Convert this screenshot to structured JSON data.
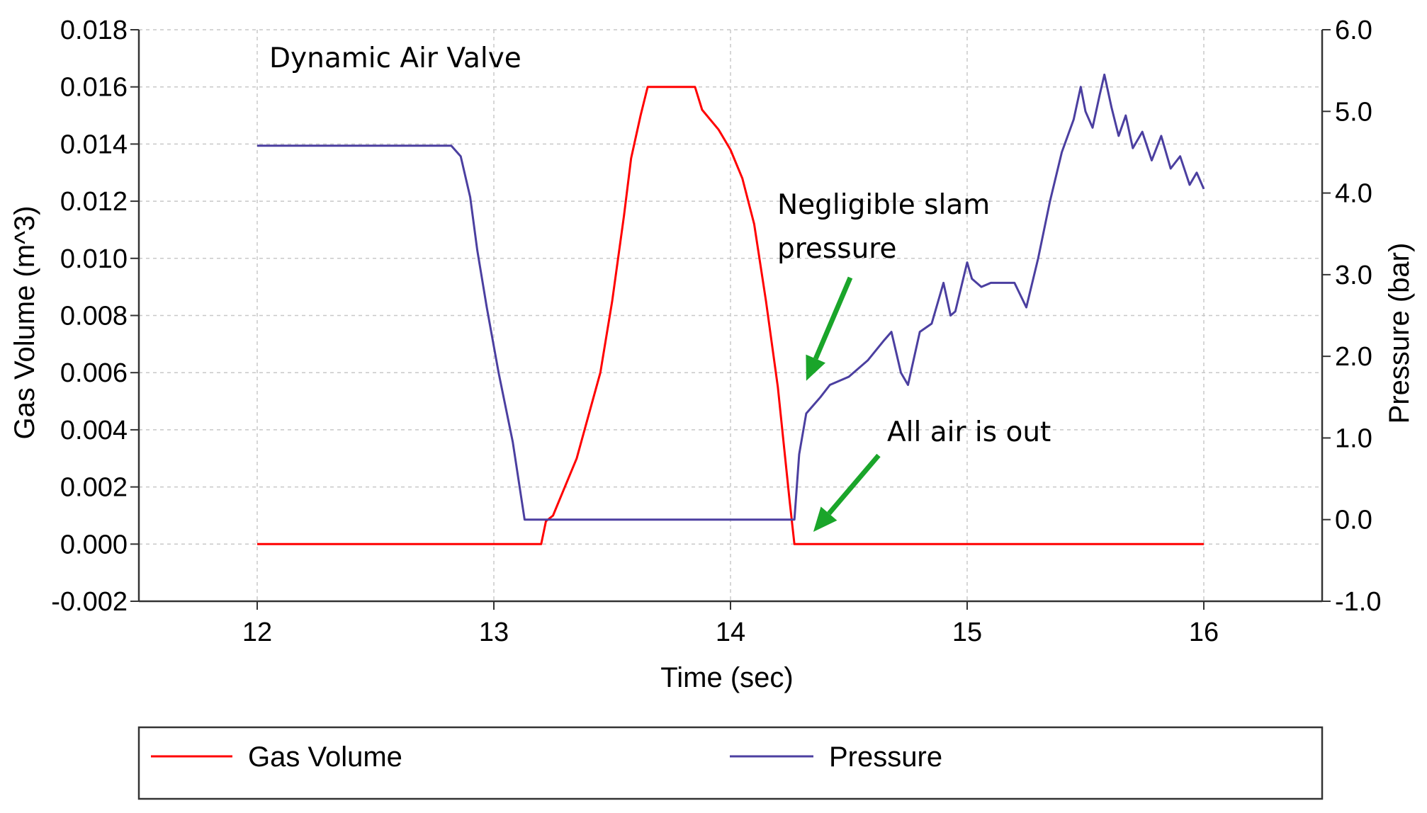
{
  "chart_data": {
    "type": "line",
    "title": "",
    "xlabel": "Time (sec)",
    "ylabel_left": "Gas Volume (m^3)",
    "ylabel_right": "Pressure (bar)",
    "xlim": [
      11.5,
      16.5
    ],
    "ylim_left": [
      -0.002,
      0.018
    ],
    "ylim_right": [
      -1.0,
      6.0
    ],
    "x_ticks": [
      "12",
      "13",
      "14",
      "15",
      "16"
    ],
    "y_ticks_left": [
      "0.018",
      "0.016",
      "0.014",
      "0.012",
      "0.010",
      "0.008",
      "0.006",
      "0.004",
      "0.002",
      "0.000",
      "-0.002"
    ],
    "y_ticks_right": [
      "6.0",
      "5.0",
      "4.0",
      "3.0",
      "2.0",
      "1.0",
      "0.0",
      "-1.0"
    ],
    "grid": true,
    "legend_placement": "bottom",
    "annotations": [
      {
        "lines": [
          "Dynamic Air Valve"
        ],
        "arrow": false
      },
      {
        "lines": [
          "Negligible slam",
          "pressure"
        ],
        "arrow": true,
        "target": [
          14.32,
          1.7
        ]
      },
      {
        "lines": [
          "All air is out"
        ],
        "arrow": true,
        "target": [
          14.35,
          -0.15
        ]
      }
    ],
    "series": [
      {
        "name": "Gas Volume",
        "axis": "left",
        "color": "#ff0000",
        "points": [
          [
            12.0,
            0.0
          ],
          [
            13.2,
            0.0
          ],
          [
            13.22,
            0.0008
          ],
          [
            13.25,
            0.001
          ],
          [
            13.3,
            0.002
          ],
          [
            13.35,
            0.003
          ],
          [
            13.4,
            0.0045
          ],
          [
            13.45,
            0.006
          ],
          [
            13.5,
            0.0085
          ],
          [
            13.55,
            0.0115
          ],
          [
            13.58,
            0.0135
          ],
          [
            13.62,
            0.015
          ],
          [
            13.65,
            0.016
          ],
          [
            13.85,
            0.016
          ],
          [
            13.88,
            0.0152
          ],
          [
            13.95,
            0.0145
          ],
          [
            14.0,
            0.0138
          ],
          [
            14.05,
            0.0128
          ],
          [
            14.1,
            0.0112
          ],
          [
            14.15,
            0.0085
          ],
          [
            14.2,
            0.0055
          ],
          [
            14.25,
            0.0015
          ],
          [
            14.27,
            0.0
          ],
          [
            16.0,
            0.0
          ]
        ]
      },
      {
        "name": "Pressure",
        "axis": "right",
        "color": "#4b3fa0",
        "points": [
          [
            12.0,
            4.58
          ],
          [
            12.82,
            4.58
          ],
          [
            12.86,
            4.45
          ],
          [
            12.9,
            3.95
          ],
          [
            12.93,
            3.3
          ],
          [
            12.97,
            2.6
          ],
          [
            13.02,
            1.8
          ],
          [
            13.08,
            0.95
          ],
          [
            13.13,
            0.0
          ],
          [
            14.27,
            0.0
          ],
          [
            14.29,
            0.8
          ],
          [
            14.32,
            1.3
          ],
          [
            14.38,
            1.5
          ],
          [
            14.42,
            1.65
          ],
          [
            14.5,
            1.75
          ],
          [
            14.58,
            1.95
          ],
          [
            14.65,
            2.2
          ],
          [
            14.68,
            2.3
          ],
          [
            14.72,
            1.8
          ],
          [
            14.75,
            1.65
          ],
          [
            14.8,
            2.3
          ],
          [
            14.85,
            2.4
          ],
          [
            14.9,
            2.9
          ],
          [
            14.93,
            2.5
          ],
          [
            14.95,
            2.55
          ],
          [
            15.0,
            3.15
          ],
          [
            15.02,
            2.95
          ],
          [
            15.06,
            2.85
          ],
          [
            15.1,
            2.9
          ],
          [
            15.15,
            2.9
          ],
          [
            15.2,
            2.9
          ],
          [
            15.25,
            2.6
          ],
          [
            15.3,
            3.2
          ],
          [
            15.35,
            3.9
          ],
          [
            15.4,
            4.5
          ],
          [
            15.45,
            4.9
          ],
          [
            15.48,
            5.3
          ],
          [
            15.5,
            5.0
          ],
          [
            15.53,
            4.8
          ],
          [
            15.56,
            5.2
          ],
          [
            15.58,
            5.45
          ],
          [
            15.61,
            5.05
          ],
          [
            15.64,
            4.7
          ],
          [
            15.67,
            4.95
          ],
          [
            15.7,
            4.55
          ],
          [
            15.74,
            4.75
          ],
          [
            15.78,
            4.4
          ],
          [
            15.82,
            4.7
          ],
          [
            15.86,
            4.3
          ],
          [
            15.9,
            4.45
          ],
          [
            15.94,
            4.1
          ],
          [
            15.97,
            4.25
          ],
          [
            16.0,
            4.05
          ]
        ]
      }
    ]
  }
}
